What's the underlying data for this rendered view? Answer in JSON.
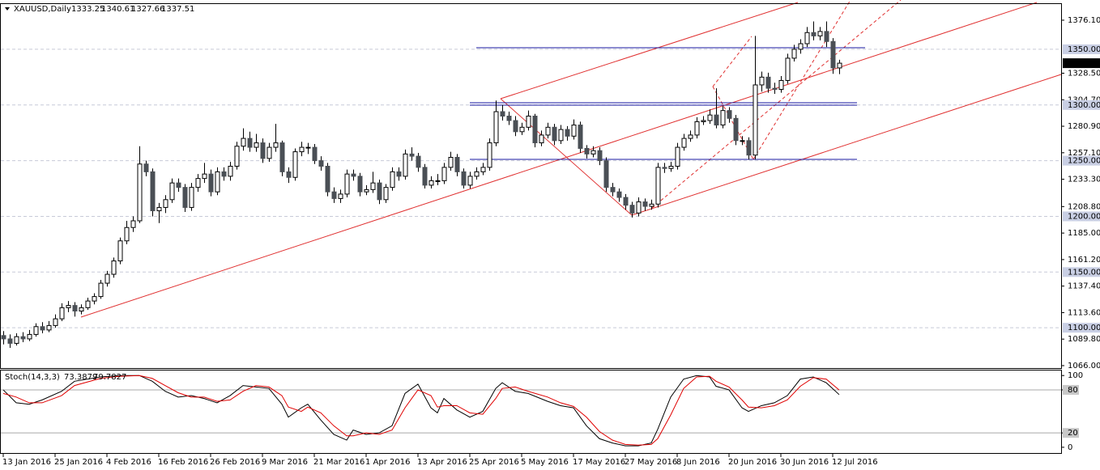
{
  "chart_data": [
    {
      "type": "candlestick",
      "title": "XAUUSD,Daily",
      "categories": [
        "13 Jan 2016",
        null,
        null,
        null,
        null,
        null,
        null,
        null,
        "25 Jan 2016",
        null,
        null,
        null,
        null,
        null,
        null,
        null,
        "4 Feb 2016",
        null,
        null,
        null,
        null,
        null,
        null,
        null,
        "16 Feb 2016",
        null,
        null,
        null,
        null,
        null,
        null,
        null,
        "26 Feb 2016",
        null,
        null,
        null,
        null,
        null,
        null,
        null,
        "9 Mar 2016",
        null,
        null,
        null,
        null,
        null,
        null,
        null,
        "21 Mar 2016",
        null,
        null,
        null,
        null,
        null,
        null,
        null,
        "1 Apr 2016",
        null,
        null,
        null,
        null,
        null,
        null,
        null,
        "13 Apr 2016",
        null,
        null,
        null,
        null,
        null,
        null,
        null,
        "25 Apr 2016",
        null,
        null,
        null,
        null,
        null,
        null,
        null,
        "5 May 2016",
        null,
        null,
        null,
        null,
        null,
        null,
        null,
        "17 May 2016",
        null,
        null,
        null,
        null,
        null,
        null,
        null,
        "27 May 2016",
        null,
        null,
        null,
        null,
        null,
        null,
        null,
        "8 Jun 2016",
        null,
        null,
        null,
        null,
        null,
        null,
        null,
        "20 Jun 2016",
        null,
        null,
        null,
        null,
        null,
        null,
        null,
        "30 Jun 2016",
        null,
        null,
        null,
        null,
        null,
        null,
        null,
        "12 Jul 2016",
        null
      ],
      "candles": [
        [
          1093,
          1097,
          1085,
          1090
        ],
        [
          1090,
          1094,
          1082,
          1086
        ],
        [
          1086,
          1095,
          1084,
          1092
        ],
        [
          1092,
          1096,
          1087,
          1090
        ],
        [
          1090,
          1098,
          1088,
          1094
        ],
        [
          1094,
          1104,
          1092,
          1101
        ],
        [
          1101,
          1105,
          1095,
          1098
        ],
        [
          1098,
          1106,
          1096,
          1102
        ],
        [
          1102,
          1112,
          1100,
          1108
        ],
        [
          1108,
          1122,
          1106,
          1118
        ],
        [
          1118,
          1124,
          1114,
          1120
        ],
        [
          1120,
          1123,
          1110,
          1115
        ],
        [
          1115,
          1121,
          1112,
          1118
        ],
        [
          1118,
          1127,
          1116,
          1124
        ],
        [
          1124,
          1131,
          1121,
          1128
        ],
        [
          1128,
          1143,
          1126,
          1140
        ],
        [
          1140,
          1151,
          1137,
          1148
        ],
        [
          1148,
          1163,
          1145,
          1160
        ],
        [
          1160,
          1181,
          1157,
          1178
        ],
        [
          1178,
          1196,
          1175,
          1190
        ],
        [
          1190,
          1200,
          1186,
          1196
        ],
        [
          1196,
          1263,
          1194,
          1247
        ],
        [
          1247,
          1250,
          1236,
          1240
        ],
        [
          1240,
          1243,
          1200,
          1205
        ],
        [
          1205,
          1212,
          1194,
          1208
        ],
        [
          1208,
          1219,
          1203,
          1215
        ],
        [
          1215,
          1234,
          1212,
          1230
        ],
        [
          1230,
          1234,
          1222,
          1226
        ],
        [
          1226,
          1229,
          1204,
          1208
        ],
        [
          1208,
          1230,
          1205,
          1226
        ],
        [
          1226,
          1238,
          1222,
          1234
        ],
        [
          1234,
          1248,
          1230,
          1238
        ],
        [
          1238,
          1242,
          1218,
          1222
        ],
        [
          1222,
          1244,
          1219,
          1240
        ],
        [
          1240,
          1244,
          1232,
          1236
        ],
        [
          1236,
          1249,
          1232,
          1245
        ],
        [
          1245,
          1267,
          1242,
          1263
        ],
        [
          1263,
          1279,
          1259,
          1270
        ],
        [
          1270,
          1276,
          1258,
          1262
        ],
        [
          1262,
          1274,
          1258,
          1266
        ],
        [
          1266,
          1270,
          1248,
          1252
        ],
        [
          1252,
          1266,
          1249,
          1262
        ],
        [
          1262,
          1283,
          1258,
          1266
        ],
        [
          1266,
          1268,
          1236,
          1240
        ],
        [
          1240,
          1244,
          1230,
          1235
        ],
        [
          1235,
          1261,
          1232,
          1258
        ],
        [
          1258,
          1267,
          1254,
          1262
        ],
        [
          1262,
          1266,
          1256,
          1262
        ],
        [
          1262,
          1265,
          1247,
          1250
        ],
        [
          1250,
          1254,
          1241,
          1245
        ],
        [
          1245,
          1248,
          1218,
          1222
        ],
        [
          1222,
          1226,
          1212,
          1216
        ],
        [
          1216,
          1224,
          1212,
          1220
        ],
        [
          1220,
          1242,
          1217,
          1238
        ],
        [
          1238,
          1242,
          1232,
          1236
        ],
        [
          1236,
          1239,
          1218,
          1222
        ],
        [
          1222,
          1228,
          1219,
          1224
        ],
        [
          1224,
          1240,
          1221,
          1230
        ],
        [
          1230,
          1233,
          1211,
          1215
        ],
        [
          1215,
          1229,
          1212,
          1226
        ],
        [
          1226,
          1244,
          1223,
          1240
        ],
        [
          1240,
          1244,
          1232,
          1236
        ],
        [
          1236,
          1260,
          1233,
          1256
        ],
        [
          1256,
          1262,
          1250,
          1254
        ],
        [
          1254,
          1257,
          1240,
          1244
        ],
        [
          1244,
          1247,
          1225,
          1228
        ],
        [
          1228,
          1236,
          1225,
          1232
        ],
        [
          1232,
          1238,
          1228,
          1232
        ],
        [
          1232,
          1248,
          1229,
          1244
        ],
        [
          1244,
          1258,
          1241,
          1253
        ],
        [
          1253,
          1256,
          1236,
          1240
        ],
        [
          1240,
          1243,
          1225,
          1228
        ],
        [
          1228,
          1240,
          1225,
          1236
        ],
        [
          1236,
          1244,
          1233,
          1240
        ],
        [
          1240,
          1248,
          1237,
          1244
        ],
        [
          1244,
          1270,
          1241,
          1266
        ],
        [
          1266,
          1304,
          1263,
          1294
        ],
        [
          1294,
          1300,
          1286,
          1290
        ],
        [
          1290,
          1294,
          1282,
          1286
        ],
        [
          1286,
          1290,
          1272,
          1276
        ],
        [
          1276,
          1284,
          1273,
          1280
        ],
        [
          1280,
          1295,
          1277,
          1290
        ],
        [
          1290,
          1292,
          1262,
          1266
        ],
        [
          1266,
          1277,
          1263,
          1273
        ],
        [
          1273,
          1284,
          1270,
          1280
        ],
        [
          1280,
          1283,
          1264,
          1268
        ],
        [
          1268,
          1282,
          1265,
          1278
        ],
        [
          1278,
          1281,
          1268,
          1272
        ],
        [
          1272,
          1287,
          1269,
          1282
        ],
        [
          1282,
          1285,
          1257,
          1261
        ],
        [
          1261,
          1264,
          1252,
          1256
        ],
        [
          1256,
          1263,
          1253,
          1259
        ],
        [
          1259,
          1262,
          1246,
          1250
        ],
        [
          1250,
          1253,
          1222,
          1226
        ],
        [
          1226,
          1230,
          1218,
          1222
        ],
        [
          1222,
          1225,
          1213,
          1217
        ],
        [
          1217,
          1220,
          1206,
          1210
        ],
        [
          1210,
          1213,
          1199,
          1203
        ],
        [
          1203,
          1217,
          1200,
          1213
        ],
        [
          1213,
          1216,
          1205,
          1209
        ],
        [
          1209,
          1215,
          1206,
          1211
        ],
        [
          1211,
          1248,
          1208,
          1244
        ],
        [
          1244,
          1248,
          1239,
          1243
        ],
        [
          1243,
          1249,
          1240,
          1245
        ],
        [
          1245,
          1266,
          1242,
          1262
        ],
        [
          1262,
          1274,
          1259,
          1270
        ],
        [
          1270,
          1277,
          1267,
          1273
        ],
        [
          1273,
          1289,
          1270,
          1285
        ],
        [
          1285,
          1290,
          1282,
          1286
        ],
        [
          1286,
          1296,
          1283,
          1291
        ],
        [
          1291,
          1315,
          1279,
          1282
        ],
        [
          1282,
          1299,
          1279,
          1295
        ],
        [
          1295,
          1298,
          1284,
          1288
        ],
        [
          1288,
          1291,
          1264,
          1268
        ],
        [
          1268,
          1272,
          1264,
          1268
        ],
        [
          1268,
          1271,
          1251,
          1255
        ],
        [
          1255,
          1362,
          1251,
          1318
        ],
        [
          1318,
          1330,
          1312,
          1325
        ],
        [
          1325,
          1329,
          1311,
          1315
        ],
        [
          1315,
          1320,
          1310,
          1314
        ],
        [
          1314,
          1326,
          1311,
          1322
        ],
        [
          1322,
          1346,
          1319,
          1342
        ],
        [
          1342,
          1354,
          1339,
          1350
        ],
        [
          1350,
          1359,
          1346,
          1355
        ],
        [
          1355,
          1370,
          1352,
          1365
        ],
        [
          1365,
          1375,
          1358,
          1362
        ],
        [
          1362,
          1370,
          1358,
          1366
        ],
        [
          1366,
          1375,
          1352,
          1357
        ],
        [
          1357,
          1360,
          1328,
          1333.25
        ],
        [
          1333.25,
          1340.61,
          1327.66,
          1337.51
        ]
      ],
      "up_color": "#ffffff",
      "down_color": "#4a4f55",
      "ylim": [
        1063.8,
        1390.6
      ],
      "yticks": [
        {
          "value": 1066,
          "label": "1066.00"
        },
        {
          "value": 1089.8,
          "label": "1089.80"
        },
        {
          "value": 1113.6,
          "label": "1113.60"
        },
        {
          "value": 1137.4,
          "label": "1137.40"
        },
        {
          "value": 1161.2,
          "label": "1161.20"
        },
        {
          "value": 1185,
          "label": "1185.00"
        },
        {
          "value": 1208.8,
          "label": "1208.80"
        },
        {
          "value": 1233.3,
          "label": "1233.30"
        },
        {
          "value": 1257.1,
          "label": "1257.10"
        },
        {
          "value": 1280.9,
          "label": "1280.90"
        },
        {
          "value": 1304.7,
          "label": "1304.70"
        },
        {
          "value": 1328.5,
          "label": "1328.50"
        },
        {
          "value": 1376.1,
          "label": "1376.10"
        }
      ],
      "levels": [
        {
          "value": 1350,
          "label": "1350.00"
        },
        {
          "value": 1300,
          "label": "1300.00"
        },
        {
          "value": 1250,
          "label": "1250.00"
        },
        {
          "value": 1200,
          "label": "1200.00"
        },
        {
          "value": 1150,
          "label": "1150.00"
        },
        {
          "value": 1100,
          "label": "1100.00"
        }
      ]
    },
    {
      "type": "line",
      "title": "Stoch(14,3,3)",
      "x": [
        0,
        2,
        4,
        6,
        9,
        11,
        15,
        18,
        21,
        23,
        25,
        27,
        29,
        31,
        33,
        35,
        37,
        39,
        41,
        43,
        44,
        46,
        47,
        49,
        51,
        53,
        54,
        56,
        58,
        60,
        62,
        64,
        66,
        67,
        68,
        70,
        72,
        74,
        76,
        77,
        79,
        81,
        84,
        86,
        88,
        90,
        92,
        94,
        96,
        98,
        100,
        101,
        103,
        105,
        107,
        109,
        110,
        112,
        114,
        115,
        117,
        119,
        121,
        123,
        125,
        127,
        129
      ],
      "series": [
        {
          "color": "#000000",
          "values": [
            80,
            62,
            60,
            66,
            78,
            92,
            98,
            100,
            100,
            92,
            78,
            70,
            72,
            68,
            62,
            72,
            86,
            84,
            82,
            60,
            42,
            55,
            60,
            38,
            18,
            10,
            24,
            18,
            20,
            30,
            75,
            88,
            55,
            48,
            68,
            52,
            42,
            50,
            82,
            90,
            78,
            75,
            64,
            58,
            55,
            30,
            12,
            6,
            2,
            2,
            6,
            25,
            70,
            95,
            100,
            98,
            85,
            80,
            55,
            50,
            58,
            62,
            72,
            95,
            98,
            90,
            73.3879
          ]
        },
        {
          "color": "#e00000",
          "values": [
            75,
            70,
            62,
            62,
            72,
            86,
            96,
            99,
            100,
            96,
            86,
            76,
            70,
            70,
            64,
            66,
            78,
            86,
            84,
            72,
            56,
            50,
            56,
            48,
            30,
            16,
            16,
            20,
            18,
            24,
            55,
            80,
            72,
            56,
            58,
            58,
            48,
            46,
            68,
            82,
            84,
            78,
            70,
            62,
            57,
            42,
            22,
            10,
            4,
            3,
            4,
            12,
            45,
            82,
            98,
            99,
            92,
            84,
            66,
            56,
            55,
            58,
            66,
            85,
            97,
            95,
            79.7827
          ]
        }
      ],
      "ylim": [
        -8,
        107
      ],
      "yticks": [
        0,
        20,
        80,
        100
      ],
      "levels": [
        20,
        80
      ]
    }
  ]
}
